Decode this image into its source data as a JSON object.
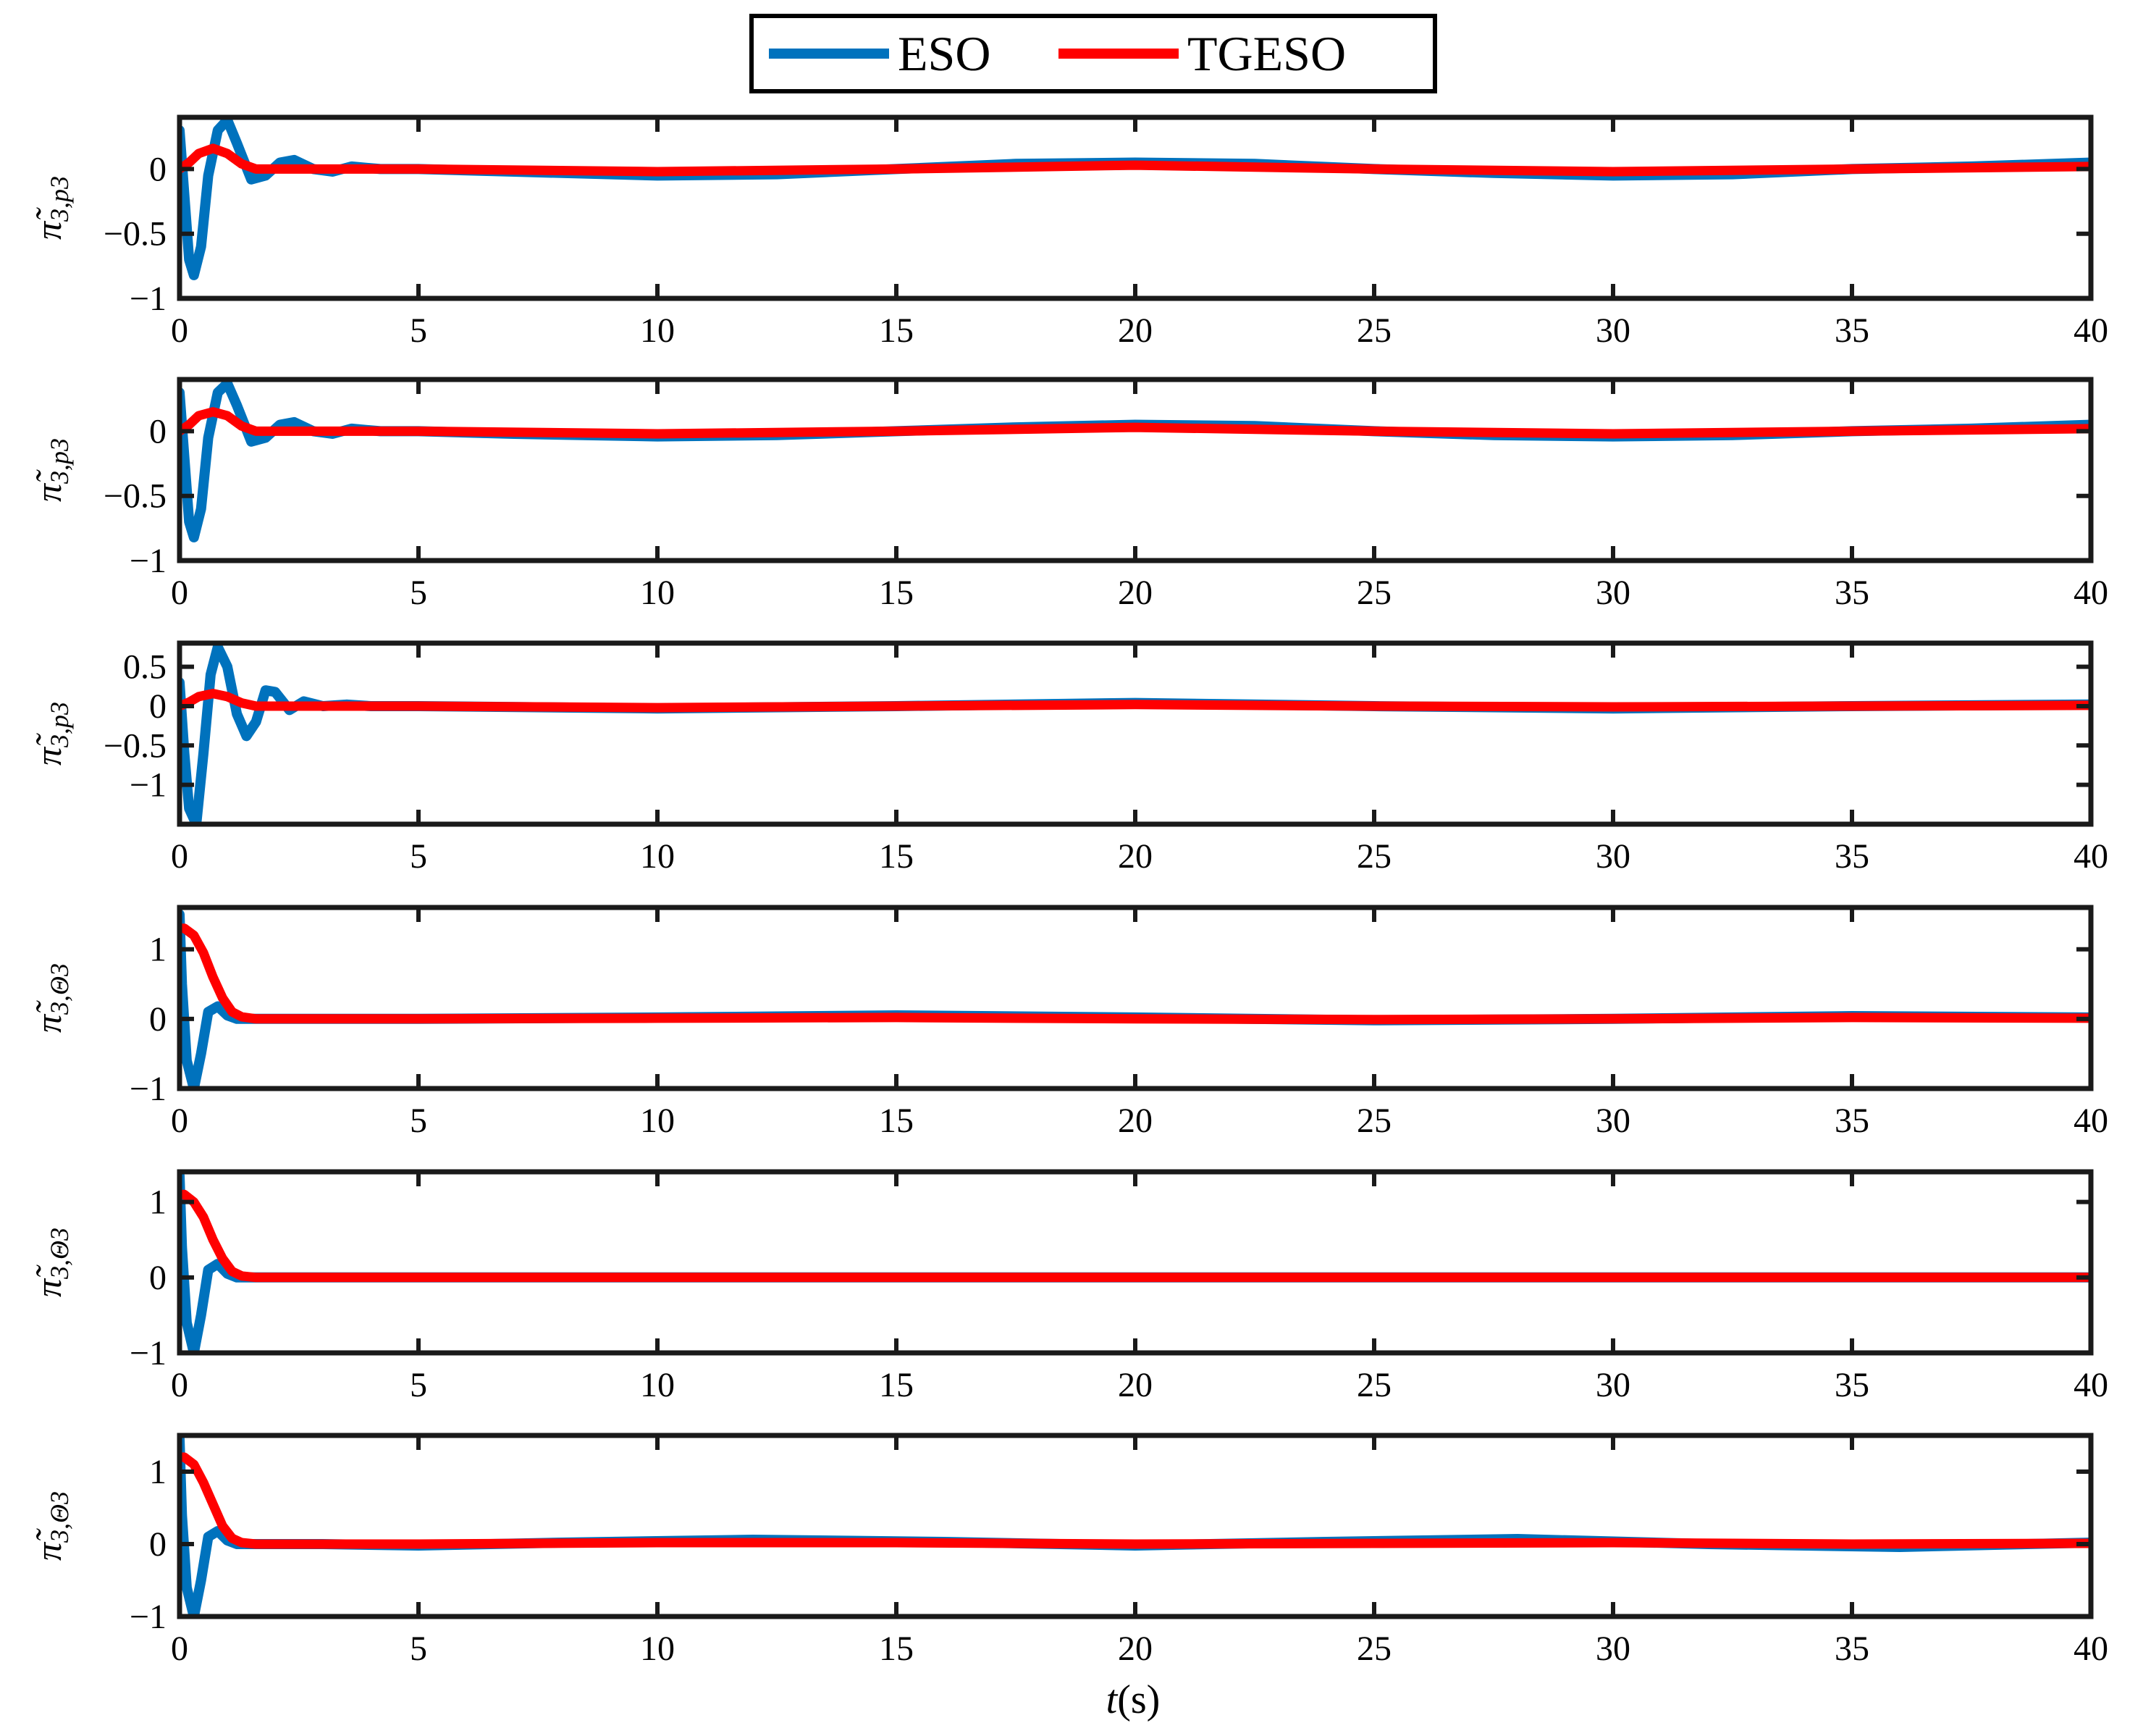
{
  "chart_data": {
    "type": "line",
    "legend": {
      "placement": "top-center",
      "entries": [
        {
          "name": "ESO",
          "color": "#0072BD"
        },
        {
          "name": "TGESO",
          "color": "#FF0000"
        }
      ]
    },
    "xlabel": "t",
    "xlabel_unit": "(s)",
    "xlim": [
      0,
      40
    ],
    "xticks": [
      "0",
      "5",
      "10",
      "15",
      "20",
      "25",
      "30",
      "35",
      "40"
    ],
    "grid": false,
    "panels": [
      {
        "ylabel_main": "π̃",
        "ylabel_sub": "3,p3",
        "ylim": [
          -1,
          0.4
        ],
        "yticks": [
          {
            "v": 0,
            "label": "0"
          },
          {
            "v": -0.5,
            "label": "−0.5"
          },
          {
            "v": -1,
            "label": "−1"
          }
        ],
        "series": [
          {
            "name": "ESO",
            "x": [
              0,
              0.1,
              0.2,
              0.3,
              0.45,
              0.6,
              0.8,
              1.0,
              1.2,
              1.5,
              1.8,
              2.1,
              2.4,
              2.8,
              3.2,
              3.6,
              4.2,
              5,
              7,
              10,
              12.5,
              15,
              17.5,
              20,
              22.5,
              25,
              27.5,
              30,
              32.5,
              35,
              37.5,
              40
            ],
            "y": [
              0.3,
              -0.2,
              -0.7,
              -0.82,
              -0.6,
              -0.05,
              0.3,
              0.38,
              0.2,
              -0.08,
              -0.05,
              0.05,
              0.07,
              0.0,
              -0.02,
              0.02,
              0.0,
              0.0,
              -0.02,
              -0.05,
              -0.04,
              0.0,
              0.04,
              0.05,
              0.04,
              0.0,
              -0.03,
              -0.05,
              -0.04,
              0.0,
              0.02,
              0.05
            ]
          },
          {
            "name": "TGESO",
            "x": [
              0,
              0.2,
              0.4,
              0.7,
              1.0,
              1.3,
              1.6,
              2.0,
              2.5,
              3,
              5,
              10,
              15,
              20,
              25,
              30,
              35,
              40
            ],
            "y": [
              0.0,
              0.05,
              0.12,
              0.16,
              0.12,
              0.04,
              0.0,
              0.0,
              0.0,
              0.0,
              0.0,
              -0.02,
              0.0,
              0.03,
              0.0,
              -0.02,
              0.0,
              0.02
            ]
          }
        ]
      },
      {
        "ylabel_main": "π̃",
        "ylabel_sub": "3,p3",
        "ylim": [
          -1,
          0.4
        ],
        "yticks": [
          {
            "v": 0,
            "label": "0"
          },
          {
            "v": -0.5,
            "label": "−0.5"
          },
          {
            "v": -1,
            "label": "−1"
          }
        ],
        "series": [
          {
            "name": "ESO",
            "x": [
              0,
              0.1,
              0.2,
              0.3,
              0.45,
              0.6,
              0.8,
              1.0,
              1.2,
              1.5,
              1.8,
              2.1,
              2.4,
              2.8,
              3.2,
              3.6,
              4.2,
              5,
              7,
              10,
              12.5,
              15,
              17.5,
              20,
              22.5,
              25,
              27.5,
              30,
              32.5,
              35,
              37.5,
              40
            ],
            "y": [
              0.3,
              -0.2,
              -0.7,
              -0.82,
              -0.6,
              -0.05,
              0.3,
              0.37,
              0.2,
              -0.08,
              -0.05,
              0.05,
              0.07,
              0.0,
              -0.02,
              0.02,
              0.0,
              0.0,
              -0.02,
              -0.04,
              -0.03,
              0.0,
              0.03,
              0.05,
              0.04,
              0.0,
              -0.03,
              -0.04,
              -0.03,
              0.0,
              0.02,
              0.05
            ]
          },
          {
            "name": "TGESO",
            "x": [
              0,
              0.2,
              0.4,
              0.7,
              1.0,
              1.3,
              1.6,
              2.0,
              2.5,
              3,
              5,
              10,
              15,
              20,
              25,
              30,
              35,
              40
            ],
            "y": [
              0.0,
              0.05,
              0.12,
              0.15,
              0.12,
              0.04,
              0.0,
              0.0,
              0.0,
              0.0,
              0.0,
              -0.02,
              0.0,
              0.03,
              0.0,
              -0.02,
              0.0,
              0.02
            ]
          }
        ]
      },
      {
        "ylabel_main": "π̃",
        "ylabel_sub": "3,p3",
        "ylim": [
          -1.5,
          0.8
        ],
        "yticks": [
          {
            "v": 0.5,
            "label": "0.5"
          },
          {
            "v": 0,
            "label": "0"
          },
          {
            "v": -0.5,
            "label": "−0.5"
          },
          {
            "v": -1,
            "label": "−1"
          }
        ],
        "series": [
          {
            "name": "ESO",
            "x": [
              0,
              0.1,
              0.2,
              0.35,
              0.5,
              0.65,
              0.8,
              1.0,
              1.2,
              1.4,
              1.6,
              1.8,
              2.0,
              2.3,
              2.6,
              3.0,
              3.5,
              4,
              5,
              10,
              15,
              20,
              25,
              30,
              35,
              40
            ],
            "y": [
              0.3,
              -0.6,
              -1.3,
              -1.5,
              -0.6,
              0.4,
              0.75,
              0.5,
              -0.1,
              -0.38,
              -0.2,
              0.2,
              0.18,
              -0.05,
              0.06,
              0.0,
              0.02,
              0.0,
              0.0,
              -0.03,
              0.0,
              0.04,
              0.0,
              -0.03,
              0.0,
              0.02
            ]
          },
          {
            "name": "TGESO",
            "x": [
              0,
              0.2,
              0.4,
              0.7,
              1.0,
              1.3,
              1.6,
              2.0,
              2.5,
              3,
              5,
              10,
              15,
              20,
              25,
              30,
              35,
              40
            ],
            "y": [
              0.0,
              0.05,
              0.12,
              0.16,
              0.12,
              0.04,
              0.0,
              0.0,
              0.0,
              0.0,
              0.0,
              -0.02,
              0.0,
              0.02,
              0.0,
              -0.01,
              0.0,
              0.01
            ]
          }
        ]
      },
      {
        "ylabel_main": "π̃",
        "ylabel_sub": "3,Θ3",
        "ylim": [
          -1,
          1.6
        ],
        "yticks": [
          {
            "v": 1,
            "label": "1"
          },
          {
            "v": 0,
            "label": "0"
          },
          {
            "v": -1,
            "label": "−1"
          }
        ],
        "series": [
          {
            "name": "ESO",
            "x": [
              0,
              0.05,
              0.15,
              0.3,
              0.45,
              0.6,
              0.8,
              1.0,
              1.2,
              1.5,
              2,
              3,
              5,
              10,
              15,
              20,
              25,
              30,
              35,
              40
            ],
            "y": [
              1.5,
              0.5,
              -0.6,
              -1.0,
              -0.5,
              0.1,
              0.18,
              0.05,
              0.0,
              0.0,
              0.0,
              0.0,
              0.0,
              0.02,
              0.05,
              0.02,
              -0.02,
              0.0,
              0.04,
              0.02
            ]
          },
          {
            "name": "TGESO",
            "x": [
              0,
              0.1,
              0.3,
              0.5,
              0.7,
              0.9,
              1.1,
              1.3,
              1.6,
              2.0,
              3,
              5,
              10,
              15,
              20,
              25,
              30,
              35,
              40
            ],
            "y": [
              1.3,
              1.3,
              1.2,
              0.95,
              0.6,
              0.3,
              0.1,
              0.03,
              0.0,
              0.0,
              0.0,
              0.0,
              0.01,
              0.02,
              0.0,
              -0.01,
              0.0,
              0.02,
              0.01
            ]
          }
        ]
      },
      {
        "ylabel_main": "π̃",
        "ylabel_sub": "3,Θ3",
        "ylim": [
          -1,
          1.4
        ],
        "yticks": [
          {
            "v": 1,
            "label": "1"
          },
          {
            "v": 0,
            "label": "0"
          },
          {
            "v": -1,
            "label": "−1"
          }
        ],
        "series": [
          {
            "name": "ESO",
            "x": [
              0,
              0.05,
              0.15,
              0.3,
              0.45,
              0.6,
              0.8,
              1.0,
              1.2,
              1.5,
              2,
              3,
              5,
              10,
              15,
              20,
              25,
              30,
              35,
              40
            ],
            "y": [
              1.35,
              0.4,
              -0.6,
              -1.0,
              -0.5,
              0.1,
              0.18,
              0.05,
              0.0,
              0.0,
              0.0,
              0.0,
              0.0,
              0.0,
              0.0,
              0.0,
              0.0,
              0.0,
              0.0,
              0.0
            ]
          },
          {
            "name": "TGESO",
            "x": [
              0,
              0.1,
              0.3,
              0.5,
              0.7,
              0.9,
              1.1,
              1.3,
              1.6,
              2.0,
              3,
              5,
              10,
              15,
              20,
              25,
              30,
              35,
              40
            ],
            "y": [
              1.1,
              1.1,
              1.0,
              0.8,
              0.5,
              0.25,
              0.08,
              0.02,
              0.0,
              0.0,
              0.0,
              0.0,
              0.0,
              0.0,
              0.0,
              0.0,
              0.0,
              0.0,
              0.0
            ]
          }
        ]
      },
      {
        "ylabel_main": "π̃",
        "ylabel_sub": "3,Θ3",
        "ylim": [
          -1,
          1.5
        ],
        "yticks": [
          {
            "v": 1,
            "label": "1"
          },
          {
            "v": 0,
            "label": "0"
          },
          {
            "v": -1,
            "label": "−1"
          }
        ],
        "series": [
          {
            "name": "ESO",
            "x": [
              0,
              0.05,
              0.15,
              0.3,
              0.45,
              0.6,
              0.8,
              1.0,
              1.2,
              1.5,
              2,
              3,
              5,
              8,
              12,
              16,
              20,
              24,
              28,
              32,
              36,
              40
            ],
            "y": [
              1.45,
              0.4,
              -0.6,
              -1.0,
              -0.5,
              0.1,
              0.18,
              0.05,
              0.0,
              0.0,
              0.0,
              0.0,
              -0.02,
              0.02,
              0.06,
              0.03,
              -0.02,
              0.03,
              0.07,
              0.0,
              -0.04,
              0.02
            ]
          },
          {
            "name": "TGESO",
            "x": [
              0,
              0.1,
              0.3,
              0.5,
              0.7,
              0.9,
              1.1,
              1.3,
              1.6,
              2.0,
              3,
              5,
              10,
              15,
              20,
              25,
              30,
              35,
              40
            ],
            "y": [
              1.2,
              1.2,
              1.1,
              0.85,
              0.55,
              0.25,
              0.08,
              0.02,
              0.0,
              0.0,
              0.0,
              0.0,
              0.02,
              0.02,
              0.0,
              0.01,
              0.02,
              0.0,
              0.01
            ]
          }
        ]
      }
    ]
  }
}
